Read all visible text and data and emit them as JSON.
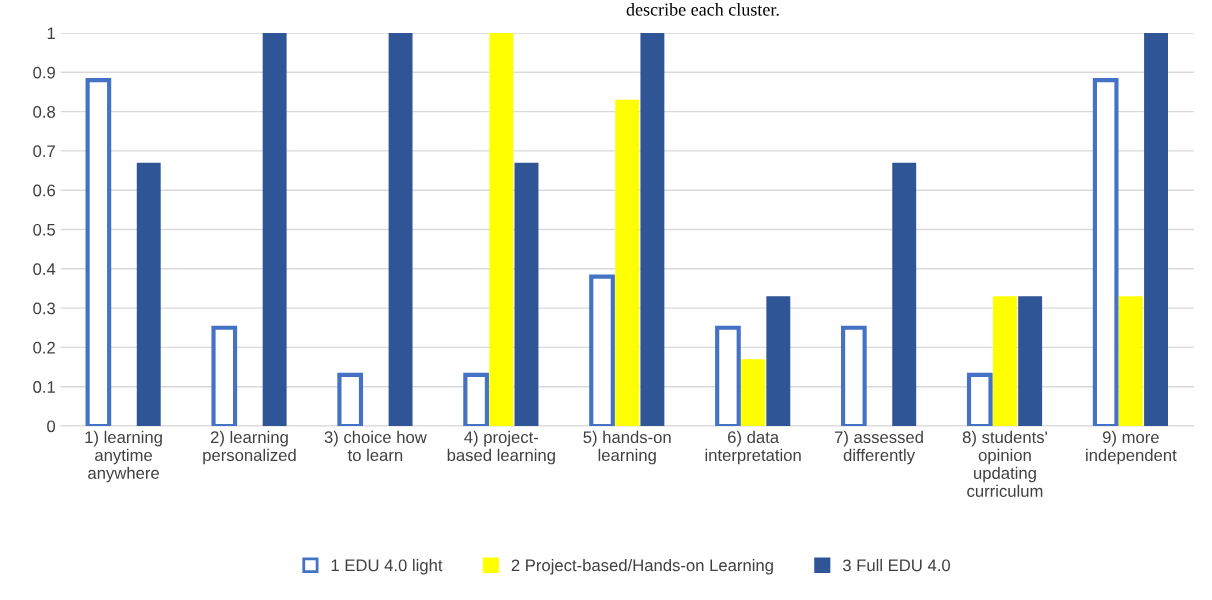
{
  "chart_data": {
    "type": "bar",
    "categories": [
      "1) learning\nanytime\nanywhere",
      "2) learning\npersonalized",
      "3) choice how\nto learn",
      "4) project-\nbased learning",
      "5) hands-on\nlearning",
      "6) data\ninterpretation",
      "7) assessed\ndifferently",
      "8) students'\nopinion\nupdating\ncurriculum",
      "9) more\nindependent"
    ],
    "series": [
      {
        "name": "1 EDU 4.0 light",
        "color": "#4472c4",
        "values": [
          0.88,
          0.25,
          0.13,
          0.13,
          0.38,
          0.25,
          0.25,
          0.13,
          0.88
        ]
      },
      {
        "name": "2 Project-based/Hands-on Learning",
        "color": "#ffff00",
        "values": [
          0,
          0,
          0,
          1,
          0.83,
          0.17,
          0,
          0.33,
          0.33
        ]
      },
      {
        "name": "3 Full EDU 4.0",
        "color": "#2f5597",
        "values": [
          0.67,
          1,
          1,
          0.67,
          1,
          0.33,
          0.67,
          0.33,
          1
        ]
      }
    ],
    "ylim": [
      0,
      1
    ],
    "yticks": [
      0,
      0.1,
      0.2,
      0.3,
      0.4,
      0.5,
      0.6,
      0.7,
      0.8,
      0.9,
      1
    ],
    "grid": "y",
    "legend": "bottom",
    "annotations": [
      "describe each cluster."
    ]
  }
}
